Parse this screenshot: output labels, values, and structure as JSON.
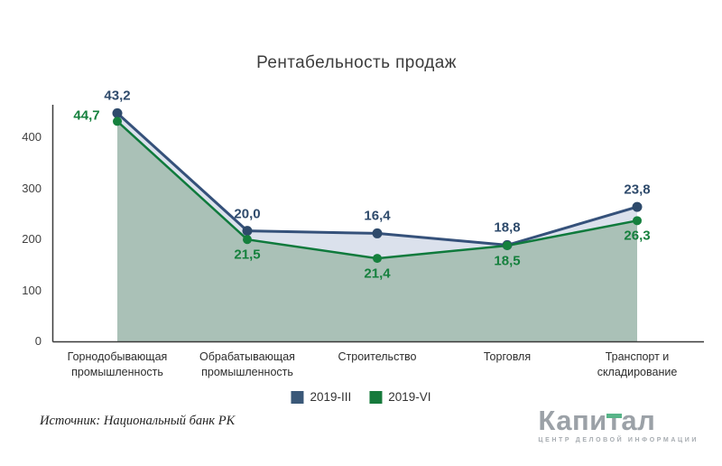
{
  "title": "Рентабельность продаж",
  "source": "Источник: Национальный банк РК",
  "legend": {
    "items": [
      {
        "label": "2019-III",
        "color": "#3a5878"
      },
      {
        "label": "2019-VI",
        "color": "#177a3c"
      }
    ]
  },
  "logo": {
    "part1": "Капи",
    "part2": "т",
    "part3": "ал",
    "subtitle": "ЦЕНТР ДЕЛОВОЙ ИНФОРМАЦИИ",
    "accent_color": "#57b488",
    "text_color": "#9ba1a7"
  },
  "chart_data": {
    "type": "line",
    "title": "Рентабельность продаж",
    "categories": [
      "Горнодобывающая промышленность",
      "Обрабатывающая промышленность",
      "Строительство",
      "Торговля",
      "Транспорт и складирование"
    ],
    "series": [
      {
        "name": "2019-III",
        "values": [
          43.2,
          20.0,
          16.4,
          18.8,
          23.8
        ],
        "labels": [
          "43,2",
          "20,0",
          "16,4",
          "18,8",
          "23,8"
        ],
        "plot": [
          448,
          217,
          212,
          189,
          264
        ],
        "color": "#35517a",
        "marker_color": "#2e4a6b",
        "label_color": "#2e4a6b",
        "swatch": "#3a5878",
        "label_side": "above"
      },
      {
        "name": "2019-VI",
        "values": [
          44.7,
          21.5,
          21.4,
          18.5,
          26.3
        ],
        "labels": [
          "44,7",
          "21,5",
          "21,4",
          "18,5",
          "26,3"
        ],
        "plot": [
          432,
          200,
          163,
          188,
          237
        ],
        "color": "#0f7a3c",
        "marker_color": "#15803d",
        "label_color": "#15803d",
        "swatch": "#177a3c",
        "label_side": "below"
      }
    ],
    "y_ticks": [
      0,
      100,
      200,
      300,
      400
    ],
    "ylim": [
      0,
      460
    ],
    "grid": false,
    "legend_position": "bottom",
    "fills": {
      "band_color": "#dbe1ec",
      "area_color": "#aac1b7"
    },
    "axis_color": "#3a3a3a"
  }
}
